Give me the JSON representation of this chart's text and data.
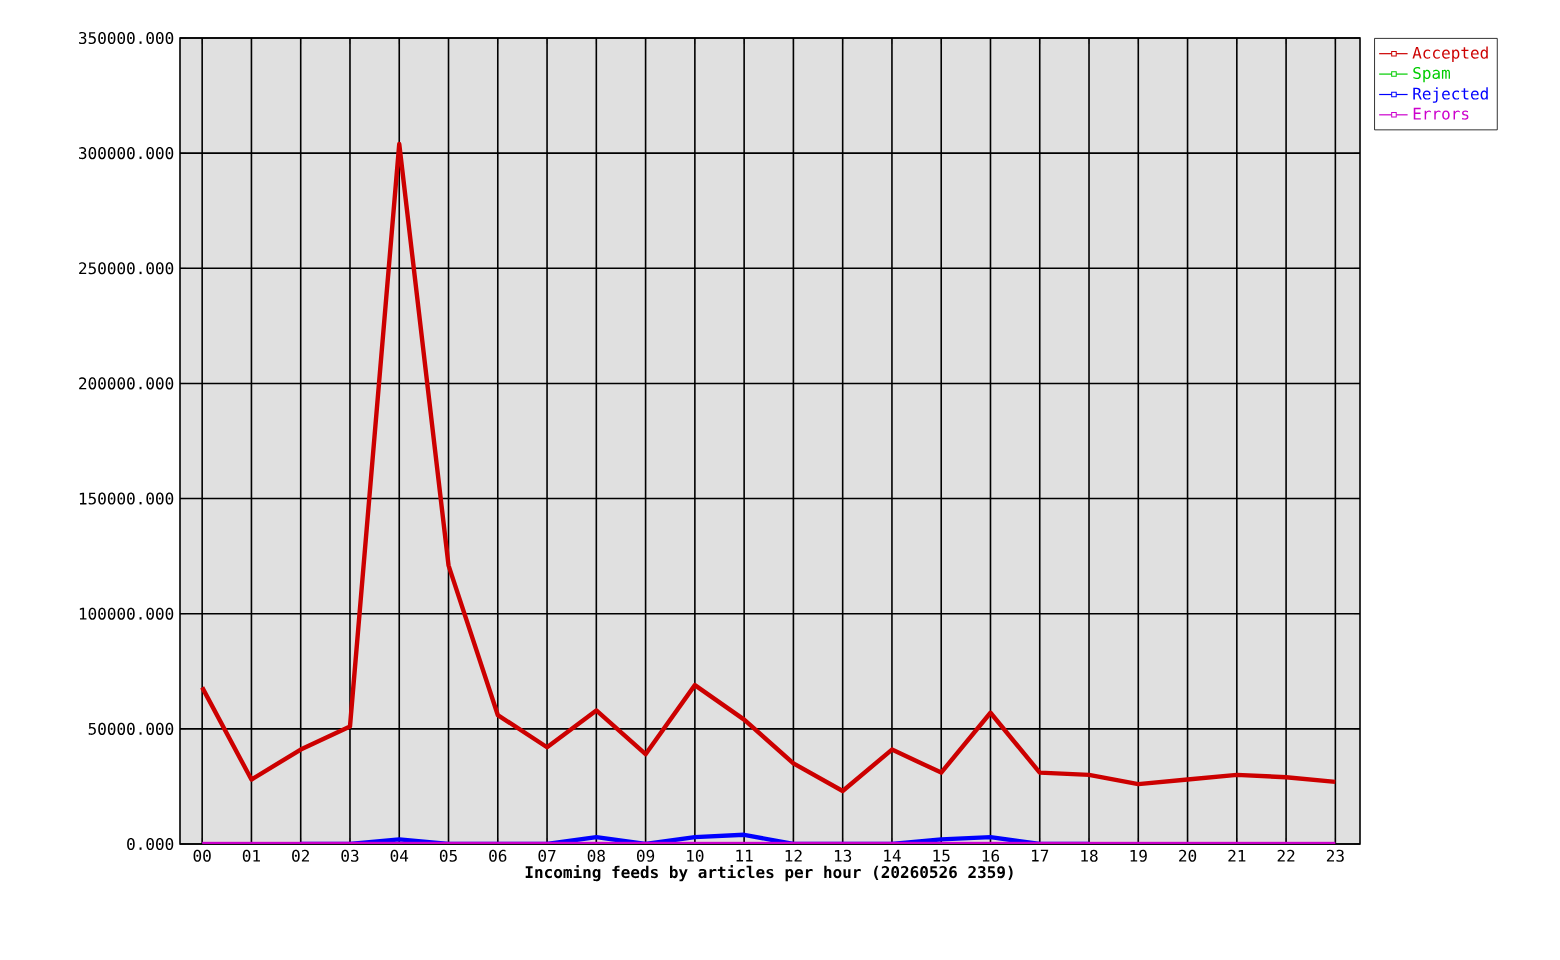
{
  "chart_data": {
    "type": "line",
    "xlabel": "Incoming feeds by articles per hour (20260526 2359)",
    "categories": [
      "00",
      "01",
      "02",
      "03",
      "04",
      "05",
      "06",
      "07",
      "08",
      "09",
      "10",
      "11",
      "12",
      "13",
      "14",
      "15",
      "16",
      "17",
      "18",
      "19",
      "20",
      "21",
      "22",
      "23"
    ],
    "series": [
      {
        "name": "Accepted",
        "color": "#cc0000",
        "values": [
          68000,
          28000,
          41000,
          51000,
          304000,
          121000,
          56000,
          42000,
          58000,
          39000,
          69000,
          54000,
          35000,
          23000,
          41000,
          31000,
          57000,
          31000,
          30000,
          26000,
          28000,
          30000,
          29000,
          27000
        ]
      },
      {
        "name": "Spam",
        "color": "#00cc00",
        "values": [
          null,
          null,
          null,
          null,
          null,
          null,
          null,
          null,
          null,
          null,
          null,
          null,
          null,
          null,
          null,
          null,
          null,
          null,
          null,
          null,
          null,
          null,
          null,
          null
        ]
      },
      {
        "name": "Rejected",
        "color": "#0000ff",
        "values": [
          null,
          null,
          0,
          0,
          2000,
          0,
          0,
          0,
          3000,
          0,
          3000,
          4000,
          0,
          0,
          0,
          2000,
          3000,
          0,
          0,
          null,
          null,
          null,
          null,
          null
        ]
      },
      {
        "name": "Errors",
        "color": "#cc00cc",
        "values": [
          0,
          0,
          0,
          0,
          0,
          0,
          0,
          0,
          0,
          0,
          0,
          0,
          0,
          0,
          0,
          0,
          0,
          0,
          0,
          0,
          0,
          0,
          0,
          0
        ]
      }
    ],
    "ylim": [
      0,
      350000
    ],
    "yticks": [
      {
        "value": 0,
        "label": "0.000"
      },
      {
        "value": 50000,
        "label": "50000.000"
      },
      {
        "value": 100000,
        "label": "100000.000"
      },
      {
        "value": 150000,
        "label": "150000.000"
      },
      {
        "value": 200000,
        "label": "200000.000"
      },
      {
        "value": 250000,
        "label": "250000.000"
      },
      {
        "value": 300000,
        "label": "300000.000"
      },
      {
        "value": 350000,
        "label": "350000.000"
      }
    ],
    "grid": true,
    "legend": "top right"
  }
}
